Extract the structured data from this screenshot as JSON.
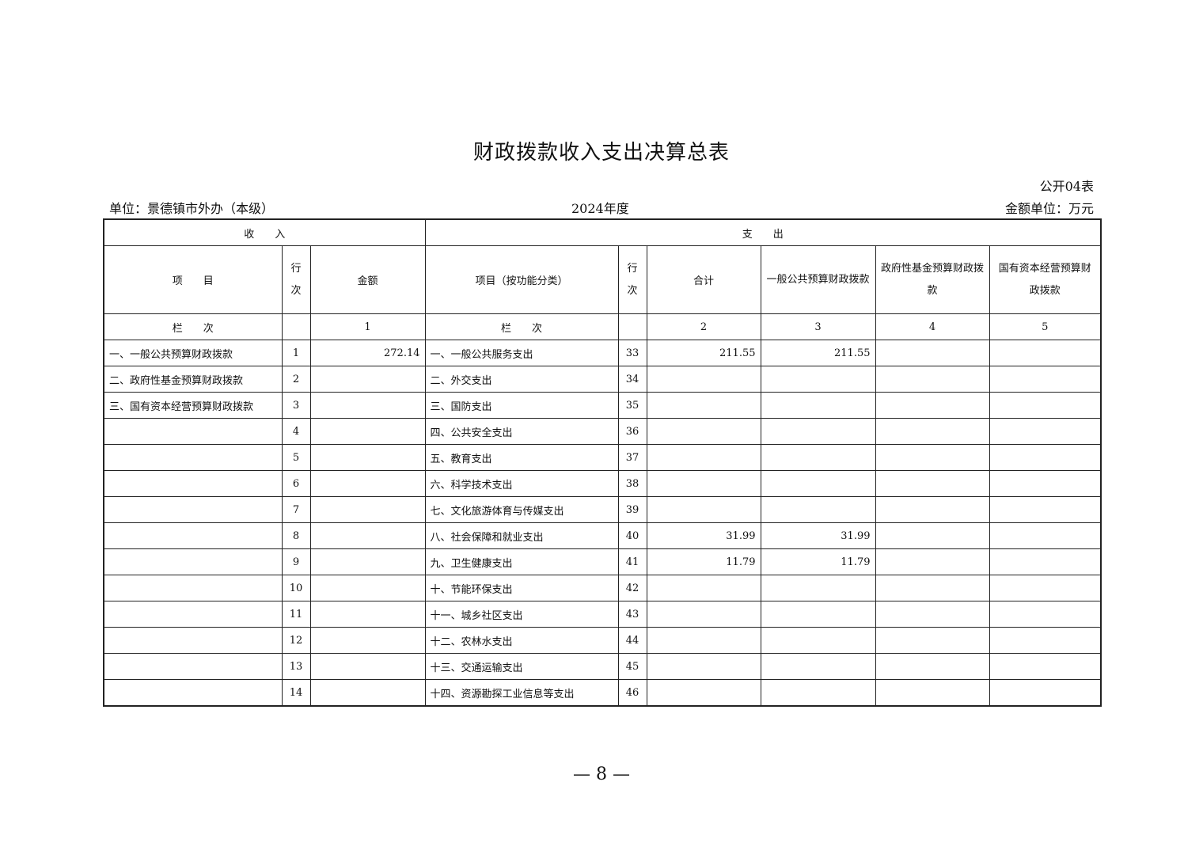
{
  "title": "财政拨款收入支出决算总表",
  "table_code": "公开04表",
  "unit": "单位：景德镇市外办（本级）",
  "year": "2024年度",
  "amount_unit": "金额单位：万元",
  "headers": {
    "income": "收　　入",
    "expense": "支　　出",
    "item": "项　　目",
    "row_no": "行次",
    "amount": "金额",
    "func_item": "项目（按功能分类）",
    "total": "合计",
    "general": "一般公共预算财政拨款",
    "gov_fund": "政府性基金预算财政拨款",
    "state_capital": "国有资本经营预算财政拨款",
    "column_label": "栏　　次",
    "col1": "1",
    "col2": "2",
    "col3": "3",
    "col4": "4",
    "col5": "5"
  },
  "rows": [
    {
      "in_item": "一、一般公共预算财政拨款",
      "in_no": "1",
      "in_amt": "272.14",
      "ex_item": "一、一般公共服务支出",
      "ex_no": "33",
      "total": "211.55",
      "general": "211.55",
      "gov": "",
      "state": ""
    },
    {
      "in_item": "二、政府性基金预算财政拨款",
      "in_no": "2",
      "in_amt": "",
      "ex_item": "二、外交支出",
      "ex_no": "34",
      "total": "",
      "general": "",
      "gov": "",
      "state": ""
    },
    {
      "in_item": "三、国有资本经营预算财政拨款",
      "in_no": "3",
      "in_amt": "",
      "ex_item": "三、国防支出",
      "ex_no": "35",
      "total": "",
      "general": "",
      "gov": "",
      "state": ""
    },
    {
      "in_item": "",
      "in_no": "4",
      "in_amt": "",
      "ex_item": "四、公共安全支出",
      "ex_no": "36",
      "total": "",
      "general": "",
      "gov": "",
      "state": ""
    },
    {
      "in_item": "",
      "in_no": "5",
      "in_amt": "",
      "ex_item": "五、教育支出",
      "ex_no": "37",
      "total": "",
      "general": "",
      "gov": "",
      "state": ""
    },
    {
      "in_item": "",
      "in_no": "6",
      "in_amt": "",
      "ex_item": "六、科学技术支出",
      "ex_no": "38",
      "total": "",
      "general": "",
      "gov": "",
      "state": ""
    },
    {
      "in_item": "",
      "in_no": "7",
      "in_amt": "",
      "ex_item": "七、文化旅游体育与传媒支出",
      "ex_no": "39",
      "total": "",
      "general": "",
      "gov": "",
      "state": ""
    },
    {
      "in_item": "",
      "in_no": "8",
      "in_amt": "",
      "ex_item": "八、社会保障和就业支出",
      "ex_no": "40",
      "total": "31.99",
      "general": "31.99",
      "gov": "",
      "state": ""
    },
    {
      "in_item": "",
      "in_no": "9",
      "in_amt": "",
      "ex_item": "九、卫生健康支出",
      "ex_no": "41",
      "total": "11.79",
      "general": "11.79",
      "gov": "",
      "state": ""
    },
    {
      "in_item": "",
      "in_no": "10",
      "in_amt": "",
      "ex_item": "十、节能环保支出",
      "ex_no": "42",
      "total": "",
      "general": "",
      "gov": "",
      "state": ""
    },
    {
      "in_item": "",
      "in_no": "11",
      "in_amt": "",
      "ex_item": "十一、城乡社区支出",
      "ex_no": "43",
      "total": "",
      "general": "",
      "gov": "",
      "state": ""
    },
    {
      "in_item": "",
      "in_no": "12",
      "in_amt": "",
      "ex_item": "十二、农林水支出",
      "ex_no": "44",
      "total": "",
      "general": "",
      "gov": "",
      "state": ""
    },
    {
      "in_item": "",
      "in_no": "13",
      "in_amt": "",
      "ex_item": "十三、交通运输支出",
      "ex_no": "45",
      "total": "",
      "general": "",
      "gov": "",
      "state": ""
    },
    {
      "in_item": "",
      "in_no": "14",
      "in_amt": "",
      "ex_item": "十四、资源勘探工业信息等支出",
      "ex_no": "46",
      "total": "",
      "general": "",
      "gov": "",
      "state": ""
    }
  ],
  "page_number": "— 8 —"
}
